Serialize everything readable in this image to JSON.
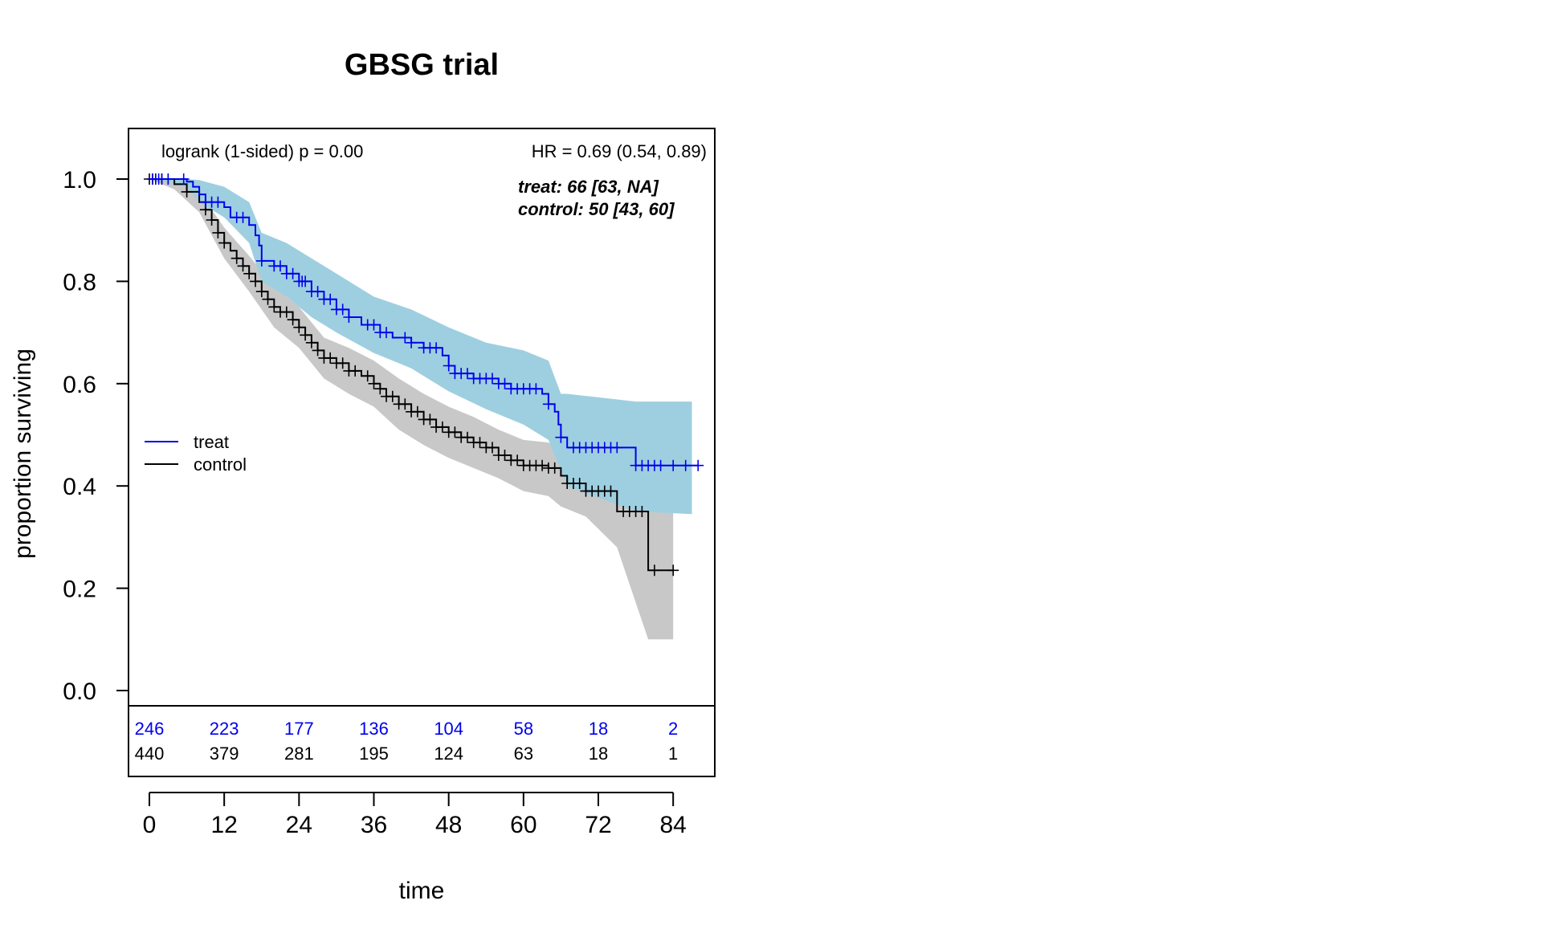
{
  "chart_data": {
    "type": "line",
    "subtype": "kaplan-meier survival curve with confidence bands",
    "title": "GBSG trial",
    "xlabel": "time",
    "ylabel": "proportion surviving",
    "xlim": [
      -6,
      91
    ],
    "ylim": [
      -0.03,
      1.1
    ],
    "xticks": [
      0,
      12,
      24,
      36,
      48,
      60,
      72,
      84
    ],
    "yticks": [
      0.0,
      0.2,
      0.4,
      0.6,
      0.8,
      1.0
    ],
    "ytick_labels": [
      "0.0",
      "0.2",
      "0.4",
      "0.6",
      "0.8",
      "1.0"
    ],
    "grid": false,
    "legend_position": "middle-left",
    "annotations": {
      "logrank": "logrank (1-sided) p = 0.00",
      "hr": "HR = 0.69 (0.54, 0.89)",
      "treat_median": "treat: 66 [63, NA]",
      "control_median": "control: 50 [43, 60]"
    },
    "series": [
      {
        "name": "treat",
        "color": "#0000ee",
        "band_color": "#9ecfe0",
        "steps": [
          [
            0,
            1.0
          ],
          [
            6,
            0.995
          ],
          [
            7,
            0.985
          ],
          [
            8,
            0.97
          ],
          [
            9,
            0.955
          ],
          [
            12,
            0.945
          ],
          [
            13,
            0.925
          ],
          [
            16,
            0.91
          ],
          [
            17,
            0.89
          ],
          [
            17.6,
            0.87
          ],
          [
            18,
            0.84
          ],
          [
            20,
            0.83
          ],
          [
            22,
            0.815
          ],
          [
            24,
            0.8
          ],
          [
            26,
            0.78
          ],
          [
            28,
            0.765
          ],
          [
            30,
            0.745
          ],
          [
            32,
            0.73
          ],
          [
            34,
            0.715
          ],
          [
            37,
            0.7
          ],
          [
            39,
            0.69
          ],
          [
            42,
            0.68
          ],
          [
            44,
            0.67
          ],
          [
            47,
            0.655
          ],
          [
            48,
            0.635
          ],
          [
            49,
            0.62
          ],
          [
            52,
            0.61
          ],
          [
            56,
            0.6
          ],
          [
            58,
            0.59
          ],
          [
            63,
            0.58
          ],
          [
            64,
            0.56
          ],
          [
            65,
            0.545
          ],
          [
            65.6,
            0.52
          ],
          [
            66,
            0.495
          ],
          [
            67,
            0.475
          ],
          [
            78,
            0.44
          ],
          [
            88,
            0.44
          ]
        ],
        "band_lower": [
          [
            0,
            1.0
          ],
          [
            6,
            0.985
          ],
          [
            8,
            0.955
          ],
          [
            12,
            0.925
          ],
          [
            16,
            0.875
          ],
          [
            18,
            0.8
          ],
          [
            22,
            0.77
          ],
          [
            26,
            0.73
          ],
          [
            30,
            0.7
          ],
          [
            36,
            0.66
          ],
          [
            42,
            0.63
          ],
          [
            48,
            0.585
          ],
          [
            54,
            0.55
          ],
          [
            60,
            0.52
          ],
          [
            64,
            0.49
          ],
          [
            66,
            0.43
          ],
          [
            67,
            0.4
          ],
          [
            78,
            0.35
          ],
          [
            87,
            0.345
          ]
        ],
        "band_upper": [
          [
            0,
            1.0
          ],
          [
            6,
            1.0
          ],
          [
            8,
            0.998
          ],
          [
            12,
            0.985
          ],
          [
            16,
            0.955
          ],
          [
            18,
            0.895
          ],
          [
            22,
            0.875
          ],
          [
            26,
            0.845
          ],
          [
            30,
            0.815
          ],
          [
            36,
            0.77
          ],
          [
            42,
            0.745
          ],
          [
            48,
            0.71
          ],
          [
            54,
            0.68
          ],
          [
            60,
            0.665
          ],
          [
            64,
            0.645
          ],
          [
            66,
            0.58
          ],
          [
            67,
            0.58
          ],
          [
            78,
            0.565
          ],
          [
            87,
            0.565
          ]
        ],
        "censor_times": [
          0.5,
          1,
          1.5,
          2,
          3,
          5.5,
          9,
          10,
          11,
          14,
          15,
          18,
          20,
          21,
          22,
          23,
          24,
          24.5,
          25,
          26,
          27,
          28,
          29,
          30,
          31,
          32,
          35,
          36,
          37,
          38,
          41,
          42,
          44,
          45,
          46,
          48,
          49,
          50,
          51,
          52,
          53,
          54,
          55,
          56,
          57,
          58,
          59,
          60,
          61,
          62,
          64,
          66,
          68,
          69,
          70,
          71,
          72,
          73,
          74,
          75,
          78,
          79,
          80,
          81,
          82,
          84,
          86,
          88
        ]
      },
      {
        "name": "control",
        "color": "#000000",
        "band_color": "#c8c8c8",
        "steps": [
          [
            0,
            1.0
          ],
          [
            4,
            0.99
          ],
          [
            6,
            0.975
          ],
          [
            8,
            0.955
          ],
          [
            9,
            0.94
          ],
          [
            10,
            0.92
          ],
          [
            11,
            0.895
          ],
          [
            12,
            0.875
          ],
          [
            13,
            0.86
          ],
          [
            14,
            0.845
          ],
          [
            15,
            0.83
          ],
          [
            16,
            0.815
          ],
          [
            17,
            0.8
          ],
          [
            18,
            0.78
          ],
          [
            19,
            0.765
          ],
          [
            20,
            0.75
          ],
          [
            21,
            0.74
          ],
          [
            23,
            0.725
          ],
          [
            24,
            0.71
          ],
          [
            25,
            0.695
          ],
          [
            26,
            0.68
          ],
          [
            27,
            0.665
          ],
          [
            28,
            0.65
          ],
          [
            30,
            0.64
          ],
          [
            32,
            0.625
          ],
          [
            34,
            0.615
          ],
          [
            36,
            0.6
          ],
          [
            37,
            0.59
          ],
          [
            38,
            0.575
          ],
          [
            40,
            0.56
          ],
          [
            42,
            0.545
          ],
          [
            44,
            0.53
          ],
          [
            46,
            0.515
          ],
          [
            48,
            0.505
          ],
          [
            50,
            0.495
          ],
          [
            52,
            0.485
          ],
          [
            54,
            0.475
          ],
          [
            56,
            0.46
          ],
          [
            58,
            0.45
          ],
          [
            60,
            0.44
          ],
          [
            64,
            0.435
          ],
          [
            66,
            0.42
          ],
          [
            67,
            0.405
          ],
          [
            70,
            0.39
          ],
          [
            75,
            0.35
          ],
          [
            80,
            0.235
          ],
          [
            84,
            0.235
          ]
        ],
        "band_lower": [
          [
            0,
            1.0
          ],
          [
            4,
            0.98
          ],
          [
            8,
            0.935
          ],
          [
            12,
            0.845
          ],
          [
            16,
            0.78
          ],
          [
            20,
            0.71
          ],
          [
            24,
            0.67
          ],
          [
            28,
            0.61
          ],
          [
            32,
            0.58
          ],
          [
            36,
            0.555
          ],
          [
            40,
            0.51
          ],
          [
            44,
            0.48
          ],
          [
            48,
            0.455
          ],
          [
            52,
            0.435
          ],
          [
            56,
            0.415
          ],
          [
            60,
            0.39
          ],
          [
            64,
            0.38
          ],
          [
            66,
            0.36
          ],
          [
            70,
            0.34
          ],
          [
            75,
            0.28
          ],
          [
            80,
            0.1
          ],
          [
            84,
            0.1
          ]
        ],
        "band_upper": [
          [
            0,
            1.0
          ],
          [
            4,
            1.0
          ],
          [
            8,
            0.975
          ],
          [
            12,
            0.905
          ],
          [
            16,
            0.85
          ],
          [
            20,
            0.79
          ],
          [
            24,
            0.75
          ],
          [
            28,
            0.69
          ],
          [
            32,
            0.67
          ],
          [
            36,
            0.645
          ],
          [
            40,
            0.61
          ],
          [
            44,
            0.58
          ],
          [
            48,
            0.555
          ],
          [
            52,
            0.535
          ],
          [
            56,
            0.51
          ],
          [
            60,
            0.49
          ],
          [
            64,
            0.485
          ],
          [
            66,
            0.47
          ],
          [
            70,
            0.44
          ],
          [
            75,
            0.42
          ],
          [
            80,
            0.37
          ],
          [
            84,
            0.37
          ]
        ],
        "censor_times": [
          0,
          0.5,
          1,
          2,
          3,
          6,
          9,
          10,
          11,
          12,
          14,
          15,
          16,
          17,
          18,
          19,
          20,
          21,
          22,
          23,
          24,
          25,
          26,
          27,
          28,
          29,
          30,
          31,
          32,
          33,
          35,
          36,
          37,
          38,
          39,
          40,
          41,
          42,
          43,
          44,
          45,
          46,
          47,
          48,
          49,
          50,
          51,
          52,
          53,
          54,
          55,
          56,
          57,
          58,
          59,
          60,
          61,
          62,
          63,
          64,
          65,
          67,
          68,
          69,
          70,
          71,
          72,
          73,
          74,
          76,
          77,
          78,
          79,
          81,
          84
        ]
      }
    ],
    "risk_table": {
      "times": [
        0,
        12,
        24,
        36,
        48,
        60,
        72,
        84
      ],
      "rows": [
        {
          "name": "treat",
          "color": "#0000ee",
          "counts": [
            "246",
            "223",
            "177",
            "136",
            "104",
            "58",
            "18",
            "2"
          ]
        },
        {
          "name": "control",
          "color": "#000000",
          "counts": [
            "440",
            "379",
            "281",
            "195",
            "124",
            "63",
            "18",
            "1"
          ]
        }
      ]
    }
  }
}
